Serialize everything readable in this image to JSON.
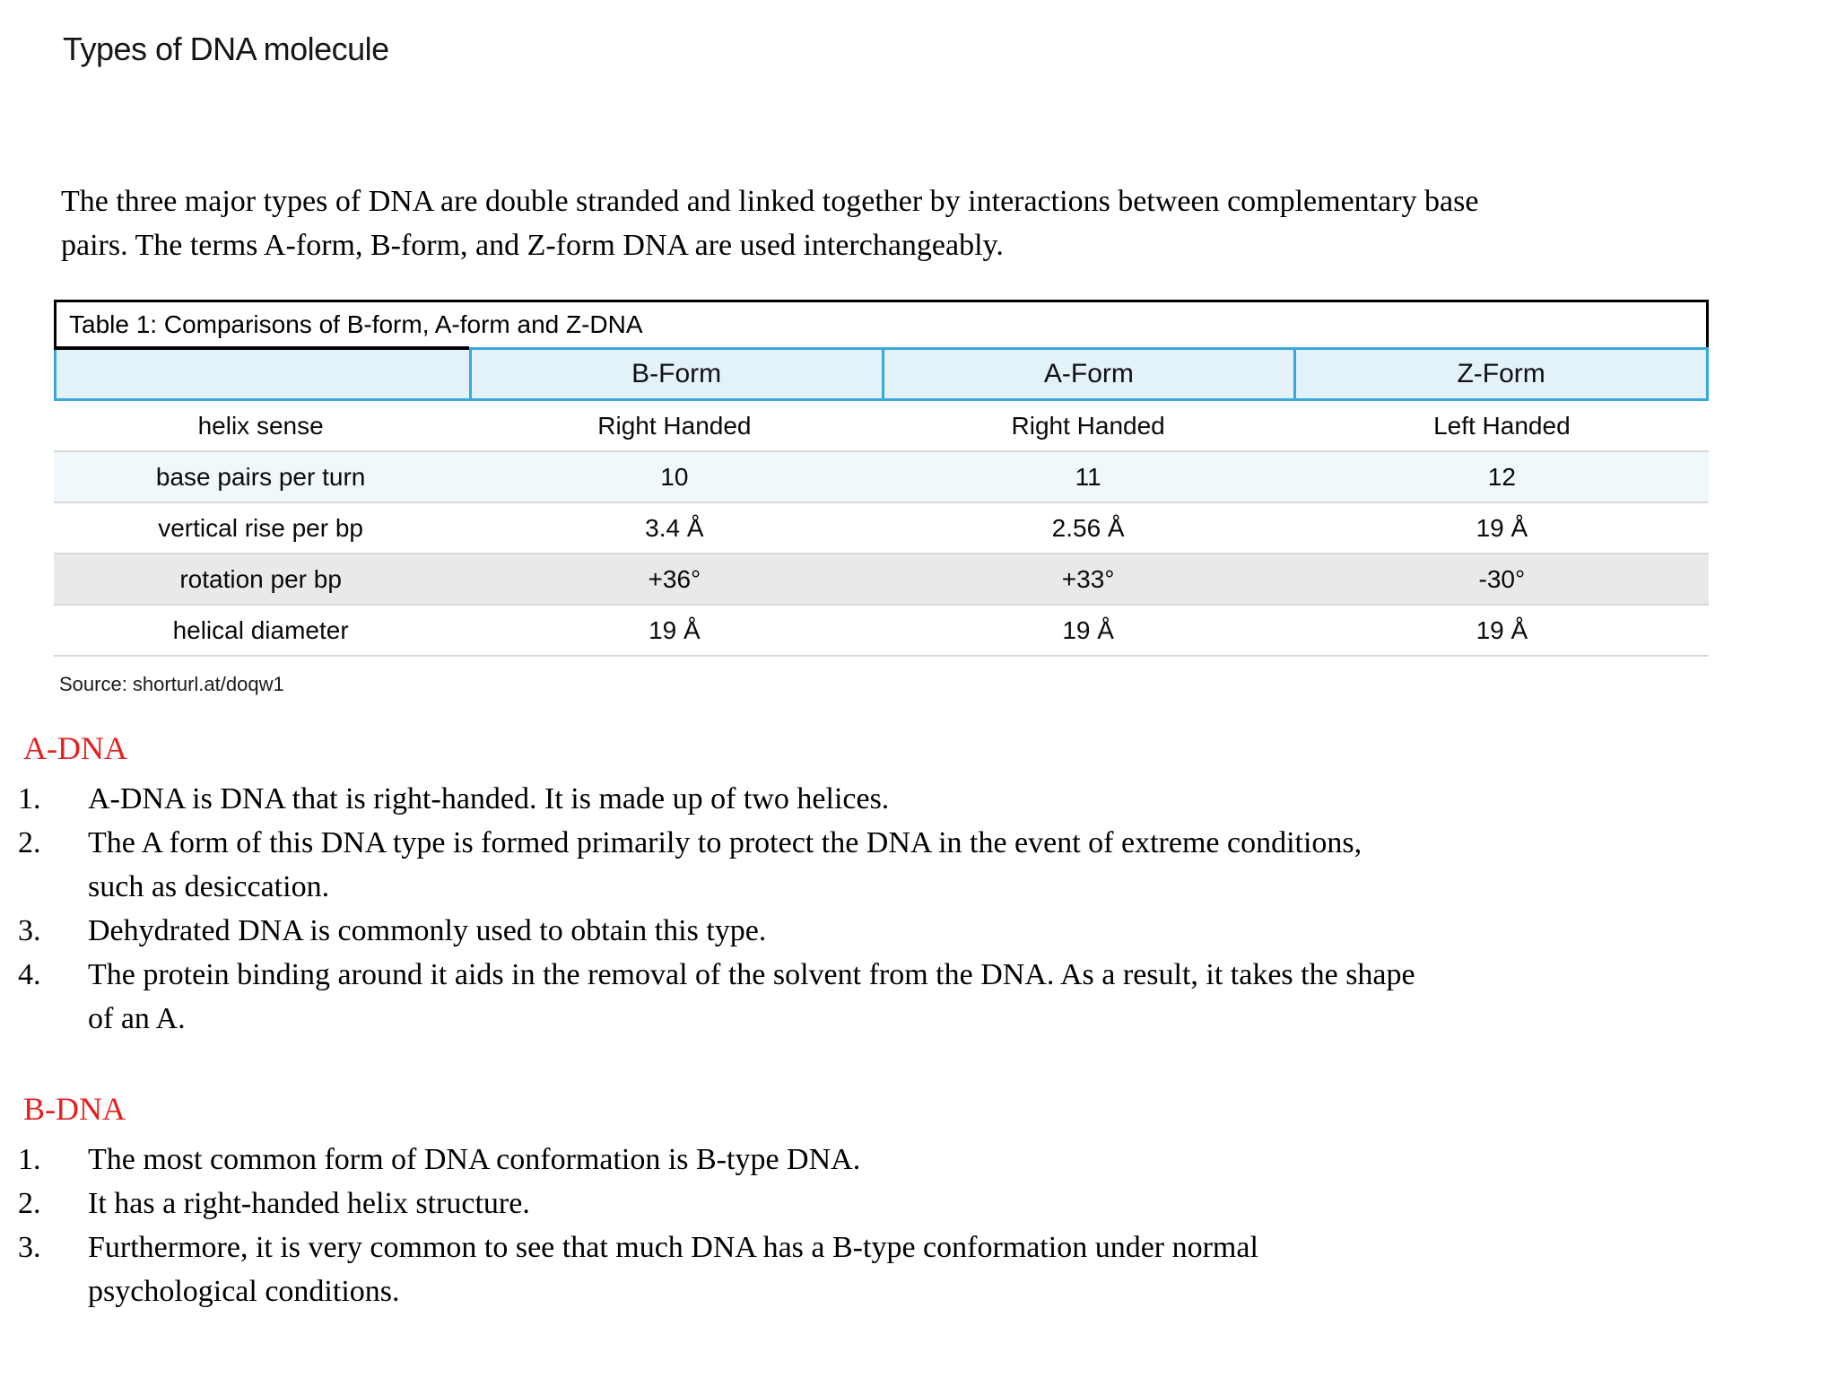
{
  "page_title": "Types of DNA molecule",
  "intro_lines": [
    "The three major types of DNA are double stranded and linked together by interactions between complementary base",
    "pairs. The terms A-form, B-form, and Z-form DNA are used interchangeably."
  ],
  "table": {
    "caption": "Table 1: Comparisons of B-form, A-form and Z-DNA",
    "columns": [
      "",
      "B-Form",
      "A-Form",
      "Z-Form"
    ],
    "rows": [
      {
        "label": "helix sense",
        "values": [
          "Right Handed",
          "Right Handed",
          "Left Handed"
        ]
      },
      {
        "label": "base pairs per turn",
        "values": [
          "10",
          "11",
          "12"
        ]
      },
      {
        "label": "vertical rise per bp",
        "values": [
          "3.4 Å",
          "2.56 Å",
          "19 Å"
        ]
      },
      {
        "label": "rotation per bp",
        "values": [
          "+36°",
          "+33°",
          "-30°"
        ]
      },
      {
        "label": "helical diameter",
        "values": [
          "19 Å",
          "19 Å",
          "19 Å"
        ]
      }
    ]
  },
  "source": "Source: shorturl.at/doqw1",
  "sections": [
    {
      "heading": "A-DNA",
      "items": [
        [
          "A-DNA is DNA that is right-handed. It is made up of two helices."
        ],
        [
          "The A form of this DNA type is formed primarily to protect the DNA in the event of extreme conditions,",
          "such as desiccation."
        ],
        [
          "Dehydrated DNA is commonly used to obtain this type."
        ],
        [
          "The protein binding around it aids in the removal of the solvent from the DNA. As a result, it takes the shape",
          "of an A."
        ]
      ]
    },
    {
      "heading": "B-DNA",
      "items": [
        [
          "The most common form of DNA conformation is B-type DNA."
        ],
        [
          "It has a right-handed helix structure."
        ],
        [
          "Furthermore, it is very common to see that much DNA has a B-type conformation under normal",
          "psychological conditions."
        ]
      ]
    }
  ],
  "colors": {
    "heading_red": "#e6201f",
    "table_border_cyan": "#3aa8dc",
    "header_fill_blue": "#e3f1f9",
    "row_tint_blue": "#f0f8fc",
    "row_tint_gray": "#e9e9ec",
    "row_divider_gray": "#d9d9d9",
    "caption_border_black": "#000000",
    "text_black": "#000000"
  }
}
